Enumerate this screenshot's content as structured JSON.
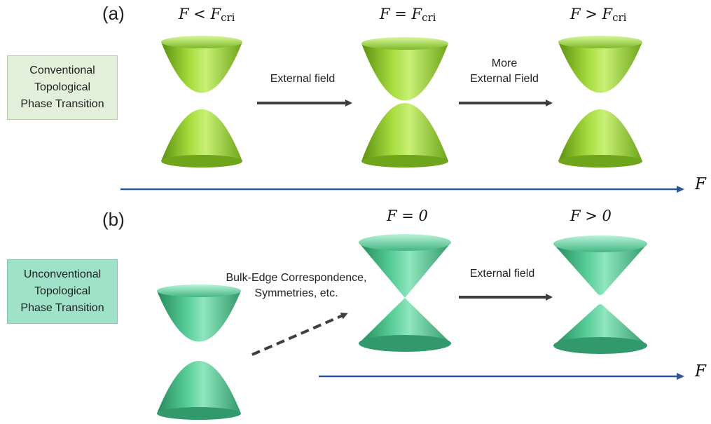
{
  "panel_a": {
    "label": "(a)",
    "side_box": "Conventional\nTopological\nPhase Transition",
    "states": [
      {
        "var": "F",
        "rel": " < ",
        "rhs": "F",
        "sub": "cri"
      },
      {
        "var": "F",
        "rel": " = ",
        "rhs": "F",
        "sub": "cri"
      },
      {
        "var": "F",
        "rel": " > ",
        "rhs": "F",
        "sub": "cri"
      }
    ],
    "arrow1": "External field",
    "arrow2": "More\nExternal Field",
    "axis_label": "F"
  },
  "panel_b": {
    "label": "(b)",
    "side_box": "Unconventional\nTopological\nPhase Transition",
    "states": [
      {
        "text": "F = 0"
      },
      {
        "text": "F > 0"
      }
    ],
    "dashed_arrow": "Bulk-Edge Correspondence,\nSymmetries, etc.",
    "arrow1": "External field",
    "axis_label": "F"
  },
  "colors": {
    "green_light": "#c6ee72",
    "green_mid": "#8cc62a",
    "green_dark": "#5c8f10",
    "teal_light": "#a8f0cf",
    "teal_mid": "#4fc590",
    "teal_dark": "#26895b",
    "axis": "#2f5597",
    "arrow": "#3f3f3f"
  }
}
